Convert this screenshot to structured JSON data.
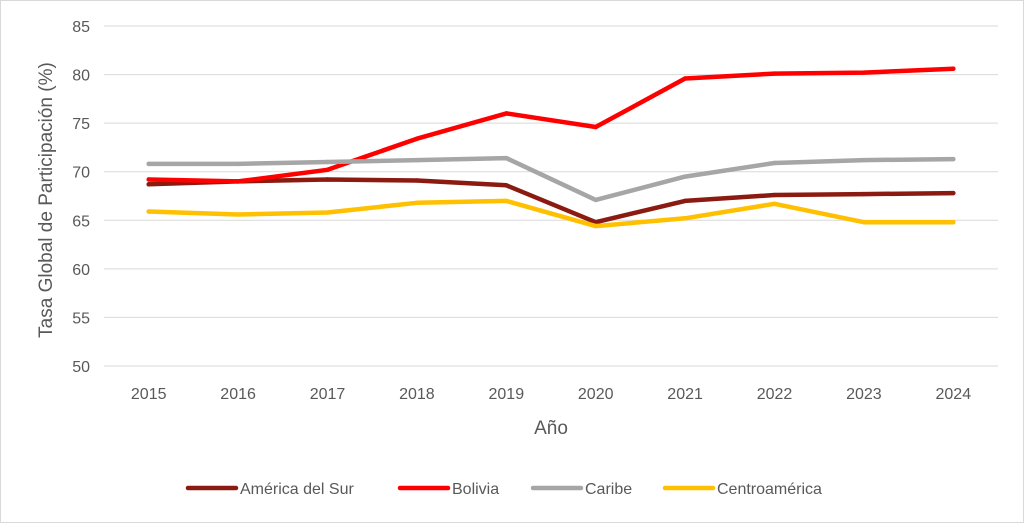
{
  "chart_data": {
    "type": "line",
    "title": "",
    "xlabel": "Año",
    "ylabel": "Tasa Global de Participación (%)",
    "categories": [
      "2015",
      "2016",
      "2017",
      "2018",
      "2019",
      "2020",
      "2021",
      "2022",
      "2023",
      "2024"
    ],
    "ylim": [
      50,
      85
    ],
    "yticks": [
      "50",
      "55",
      "60",
      "65",
      "70",
      "75",
      "80",
      "85"
    ],
    "grid": "horizontal",
    "legend_position": "bottom",
    "series": [
      {
        "name": "América del Sur",
        "color": "#8B1A10",
        "values": [
          68.7,
          69.0,
          69.2,
          69.1,
          68.6,
          64.8,
          67.0,
          67.6,
          67.7,
          67.8
        ]
      },
      {
        "name": "Bolivia",
        "color": "#FF0000",
        "values": [
          69.2,
          69.0,
          70.2,
          73.4,
          76.0,
          74.6,
          79.6,
          80.1,
          80.2,
          80.6
        ]
      },
      {
        "name": "Caribe",
        "color": "#A6A6A6",
        "values": [
          70.8,
          70.8,
          71.0,
          71.2,
          71.4,
          67.1,
          69.5,
          70.9,
          71.2,
          71.3
        ]
      },
      {
        "name": "Centroamérica",
        "color": "#FFC000",
        "values": [
          65.9,
          65.6,
          65.8,
          66.8,
          67.0,
          64.4,
          65.2,
          66.7,
          64.8,
          64.8
        ]
      }
    ]
  }
}
